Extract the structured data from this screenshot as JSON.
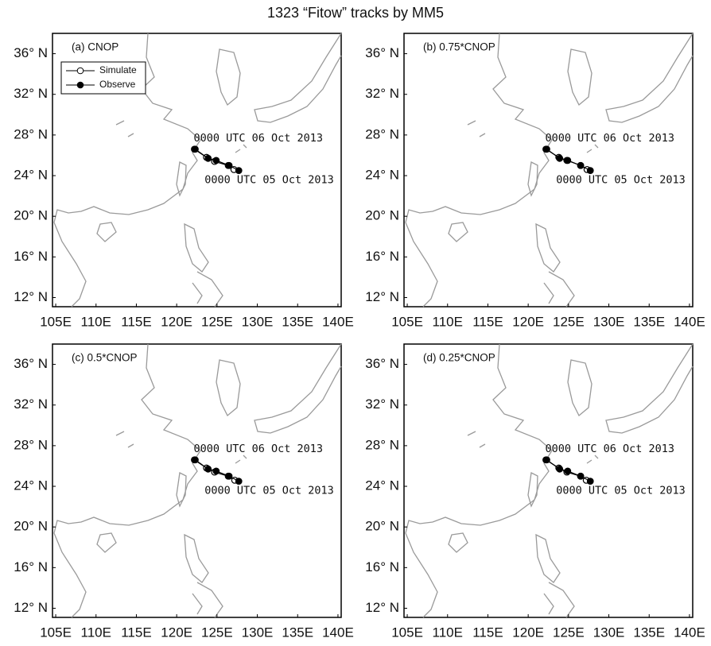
{
  "title": "1323 “Fitow” tracks by MM5",
  "chart_data": [
    {
      "type": "line",
      "title": "(a) CNOP",
      "legend": true,
      "xlim": [
        104.6,
        140.4
      ],
      "ylim": [
        11.1,
        38.0
      ],
      "xticks": [
        {
          "value": 105,
          "label": "105E"
        },
        {
          "value": 110,
          "label": "110E"
        },
        {
          "value": 115,
          "label": "115E"
        },
        {
          "value": 120,
          "label": "120E"
        },
        {
          "value": 125,
          "label": "125E"
        },
        {
          "value": 130,
          "label": "130E"
        },
        {
          "value": 135,
          "label": "135E"
        },
        {
          "value": 140,
          "label": "140E"
        }
      ],
      "yticks": [
        {
          "value": 12,
          "label": "12° N"
        },
        {
          "value": 16,
          "label": "16° N"
        },
        {
          "value": 20,
          "label": "20° N"
        },
        {
          "value": 24,
          "label": "24° N"
        },
        {
          "value": 28,
          "label": "28° N"
        },
        {
          "value": 32,
          "label": "32° N"
        },
        {
          "value": 36,
          "label": "36° N"
        }
      ],
      "series": [
        {
          "name": "Simulate",
          "color": "#000000",
          "marker": "open",
          "x": [
            122.2,
            123.7,
            124.7,
            126.4,
            127.1
          ],
          "values": [
            26.6,
            25.8,
            25.4,
            25.0,
            24.6
          ]
        },
        {
          "name": "Observe",
          "color": "#000000",
          "marker": "filled",
          "x": [
            122.3,
            123.9,
            124.9,
            126.5,
            127.7
          ],
          "values": [
            26.6,
            25.7,
            25.5,
            25.0,
            24.5
          ]
        }
      ],
      "annotations": [
        "0000 UTC 06 Oct 2013",
        "0000 UTC 05 Oct 2013"
      ]
    },
    {
      "type": "line",
      "title": "(b) 0.75*CNOP",
      "legend": false,
      "xlim": [
        104.6,
        140.4
      ],
      "ylim": [
        11.1,
        38.0
      ],
      "xticks": [
        {
          "value": 105,
          "label": "105E"
        },
        {
          "value": 110,
          "label": "110E"
        },
        {
          "value": 115,
          "label": "115E"
        },
        {
          "value": 120,
          "label": "120E"
        },
        {
          "value": 125,
          "label": "125E"
        },
        {
          "value": 130,
          "label": "130E"
        },
        {
          "value": 135,
          "label": "135E"
        },
        {
          "value": 140,
          "label": "140E"
        }
      ],
      "yticks": [
        {
          "value": 12,
          "label": "12° N"
        },
        {
          "value": 16,
          "label": "16° N"
        },
        {
          "value": 20,
          "label": "20° N"
        },
        {
          "value": 24,
          "label": "24° N"
        },
        {
          "value": 28,
          "label": "28° N"
        },
        {
          "value": 32,
          "label": "32° N"
        },
        {
          "value": 36,
          "label": "36° N"
        }
      ],
      "series": [
        {
          "name": "Simulate",
          "color": "#000000",
          "marker": "open",
          "x": [
            122.2,
            123.8,
            124.8,
            126.5,
            127.3
          ],
          "values": [
            26.6,
            25.8,
            25.5,
            25.0,
            24.6
          ]
        },
        {
          "name": "Observe",
          "color": "#000000",
          "marker": "filled",
          "x": [
            122.3,
            123.9,
            124.9,
            126.5,
            127.7
          ],
          "values": [
            26.6,
            25.7,
            25.5,
            25.0,
            24.5
          ]
        }
      ],
      "annotations": [
        "0000 UTC 06 Oct 2013",
        "0000 UTC 05 Oct 2013"
      ]
    },
    {
      "type": "line",
      "title": "(c) 0.5*CNOP",
      "legend": false,
      "xlim": [
        104.6,
        140.4
      ],
      "ylim": [
        11.1,
        38.0
      ],
      "xticks": [
        {
          "value": 105,
          "label": "105E"
        },
        {
          "value": 110,
          "label": "110E"
        },
        {
          "value": 115,
          "label": "115E"
        },
        {
          "value": 120,
          "label": "120E"
        },
        {
          "value": 125,
          "label": "125E"
        },
        {
          "value": 130,
          "label": "130E"
        },
        {
          "value": 135,
          "label": "135E"
        },
        {
          "value": 140,
          "label": "140E"
        }
      ],
      "yticks": [
        {
          "value": 12,
          "label": "12° N"
        },
        {
          "value": 16,
          "label": "16° N"
        },
        {
          "value": 20,
          "label": "20° N"
        },
        {
          "value": 24,
          "label": "24° N"
        },
        {
          "value": 28,
          "label": "28° N"
        },
        {
          "value": 32,
          "label": "32° N"
        },
        {
          "value": 36,
          "label": "36° N"
        }
      ],
      "series": [
        {
          "name": "Simulate",
          "color": "#000000",
          "marker": "open",
          "x": [
            122.2,
            123.7,
            124.7,
            126.4,
            127.2
          ],
          "values": [
            26.6,
            25.8,
            25.4,
            25.0,
            24.6
          ]
        },
        {
          "name": "Observe",
          "color": "#000000",
          "marker": "filled",
          "x": [
            122.3,
            123.9,
            124.9,
            126.5,
            127.7
          ],
          "values": [
            26.6,
            25.7,
            25.5,
            25.0,
            24.5
          ]
        }
      ],
      "annotations": [
        "0000 UTC 06 Oct 2013",
        "0000 UTC 05 Oct 2013"
      ]
    },
    {
      "type": "line",
      "title": "(d) 0.25*CNOP",
      "legend": false,
      "xlim": [
        104.6,
        140.4
      ],
      "ylim": [
        11.1,
        38.0
      ],
      "xticks": [
        {
          "value": 105,
          "label": "105E"
        },
        {
          "value": 110,
          "label": "110E"
        },
        {
          "value": 115,
          "label": "115E"
        },
        {
          "value": 120,
          "label": "120E"
        },
        {
          "value": 125,
          "label": "125E"
        },
        {
          "value": 130,
          "label": "130E"
        },
        {
          "value": 135,
          "label": "135E"
        },
        {
          "value": 140,
          "label": "140E"
        }
      ],
      "yticks": [
        {
          "value": 12,
          "label": "12° N"
        },
        {
          "value": 16,
          "label": "16° N"
        },
        {
          "value": 20,
          "label": "20° N"
        },
        {
          "value": 24,
          "label": "24° N"
        },
        {
          "value": 28,
          "label": "28° N"
        },
        {
          "value": 32,
          "label": "32° N"
        },
        {
          "value": 36,
          "label": "36° N"
        }
      ],
      "series": [
        {
          "name": "Simulate",
          "color": "#000000",
          "marker": "open",
          "x": [
            122.2,
            123.8,
            124.8,
            126.5,
            127.2
          ],
          "values": [
            26.6,
            25.8,
            25.4,
            25.0,
            24.6
          ]
        },
        {
          "name": "Observe",
          "color": "#000000",
          "marker": "filled",
          "x": [
            122.3,
            123.9,
            124.9,
            126.5,
            127.7
          ],
          "values": [
            26.6,
            25.7,
            25.5,
            25.0,
            24.5
          ]
        }
      ],
      "annotations": [
        "0000 UTC 06 Oct 2013",
        "0000 UTC 05 Oct 2013"
      ]
    }
  ]
}
